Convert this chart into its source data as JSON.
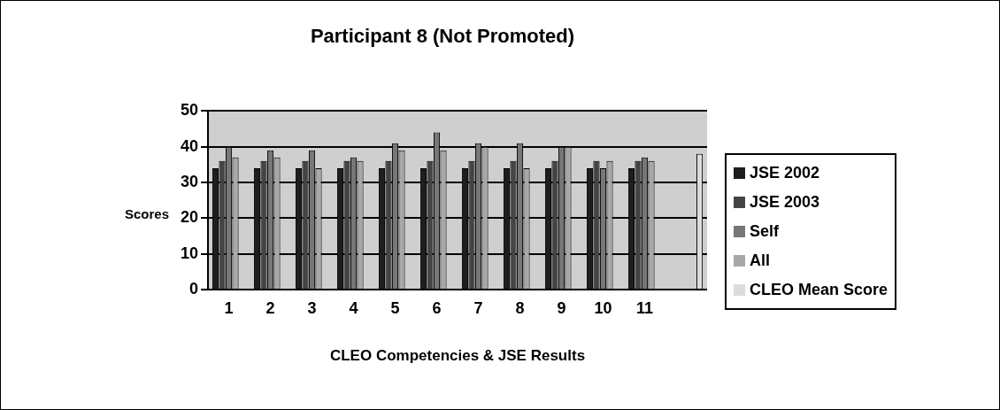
{
  "chart_data": {
    "type": "bar",
    "title": "Participant 8 (Not Promoted)",
    "xlabel": "CLEO Competencies & JSE Results",
    "ylabel": "Scores",
    "categories": [
      "1",
      "2",
      "3",
      "4",
      "5",
      "6",
      "7",
      "8",
      "9",
      "10",
      "11",
      null
    ],
    "series": [
      {
        "name": "JSE 2002",
        "color": "#1e1e1e",
        "values": [
          34,
          34,
          34,
          34,
          34,
          34,
          34,
          34,
          34,
          34,
          34,
          null
        ]
      },
      {
        "name": "JSE 2003",
        "color": "#444444",
        "values": [
          36,
          36,
          36,
          36,
          36,
          36,
          36,
          36,
          36,
          36,
          36,
          null
        ]
      },
      {
        "name": "Self",
        "color": "#777777",
        "values": [
          40,
          39,
          39,
          37,
          41,
          44,
          41,
          41,
          40,
          34,
          37,
          null
        ]
      },
      {
        "name": "All",
        "color": "#a8a8a8",
        "values": [
          37,
          37,
          34,
          36,
          39,
          39,
          40,
          34,
          40,
          36,
          36,
          null
        ]
      },
      {
        "name": "CLEO Mean Score",
        "color": "#dcdcdc",
        "values": [
          null,
          null,
          null,
          null,
          null,
          null,
          null,
          null,
          null,
          null,
          null,
          38
        ]
      }
    ],
    "ylim": [
      0,
      50
    ],
    "yticks": [
      0,
      10,
      20,
      30,
      40,
      50
    ],
    "grid": "y",
    "legend": "right"
  }
}
